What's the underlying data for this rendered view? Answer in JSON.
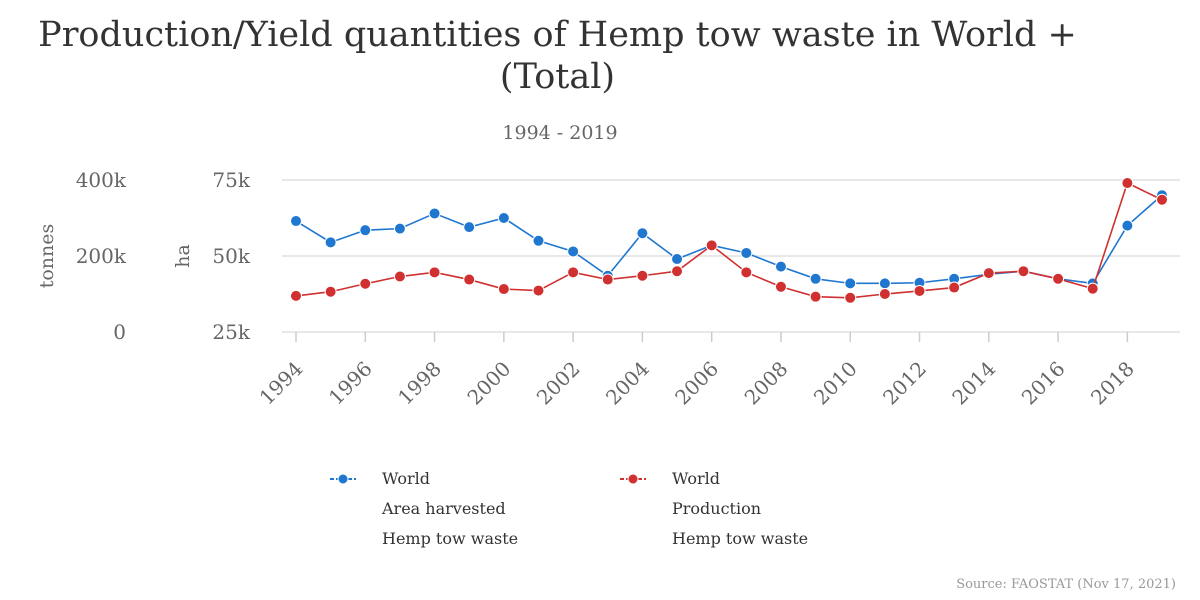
{
  "title_lines": [
    "Production/Yield quantities of Hemp tow waste in World +",
    "(Total)"
  ],
  "subtitle": "1994 - 2019",
  "source": "Source: FAOSTAT (Nov 17, 2021)",
  "chart_data": {
    "type": "line",
    "title": "Production/Yield quantities of Hemp tow waste in World + (Total)",
    "subtitle": "1994 - 2019",
    "x": [
      1994,
      1995,
      1996,
      1997,
      1998,
      1999,
      2000,
      2001,
      2002,
      2003,
      2004,
      2005,
      2006,
      2007,
      2008,
      2009,
      2010,
      2011,
      2012,
      2013,
      2014,
      2015,
      2016,
      2017,
      2018,
      2019
    ],
    "x_tick_labels": [
      "1994",
      "1996",
      "1998",
      "2000",
      "2002",
      "2004",
      "2006",
      "2008",
      "2010",
      "2012",
      "2014",
      "2016",
      "2018"
    ],
    "axes": {
      "left_outer": {
        "label": "tonnes",
        "ticks": [
          "400k",
          "200k",
          "0"
        ],
        "range": [
          0,
          400000
        ]
      },
      "left_inner": {
        "label": "ha",
        "ticks": [
          "75k",
          "50k",
          "25k"
        ],
        "range": [
          25000,
          75000
        ]
      }
    },
    "grid": true,
    "legend_position": "bottom",
    "series": [
      {
        "name": "World\nArea harvested\nHemp tow waste",
        "axis": "left_inner",
        "unit": "ha",
        "color": "#1f77d0",
        "values": [
          61500,
          54500,
          58500,
          59000,
          64000,
          59500,
          62500,
          55000,
          51500,
          43500,
          57500,
          49000,
          53500,
          51000,
          46500,
          42500,
          41000,
          41000,
          41200,
          42500,
          44000,
          45000,
          42500,
          41000,
          60000,
          70000
        ]
      },
      {
        "name": "World\nProduction\nHemp tow waste",
        "axis": "left_outer",
        "unit": "tonnes",
        "color": "#d03030",
        "values": [
          95000,
          106000,
          127000,
          146000,
          157000,
          138000,
          113000,
          109000,
          157000,
          138000,
          148000,
          160000,
          228000,
          157000,
          119000,
          93000,
          90000,
          100000,
          108000,
          117000,
          155000,
          160000,
          140000,
          114000,
          392000,
          348000
        ]
      }
    ]
  },
  "legend": [
    {
      "lines": [
        "World",
        "Area harvested",
        "Hemp tow waste"
      ],
      "color": "#1f77d0"
    },
    {
      "lines": [
        "World",
        "Production",
        "Hemp tow waste"
      ],
      "color": "#d03030"
    }
  ]
}
